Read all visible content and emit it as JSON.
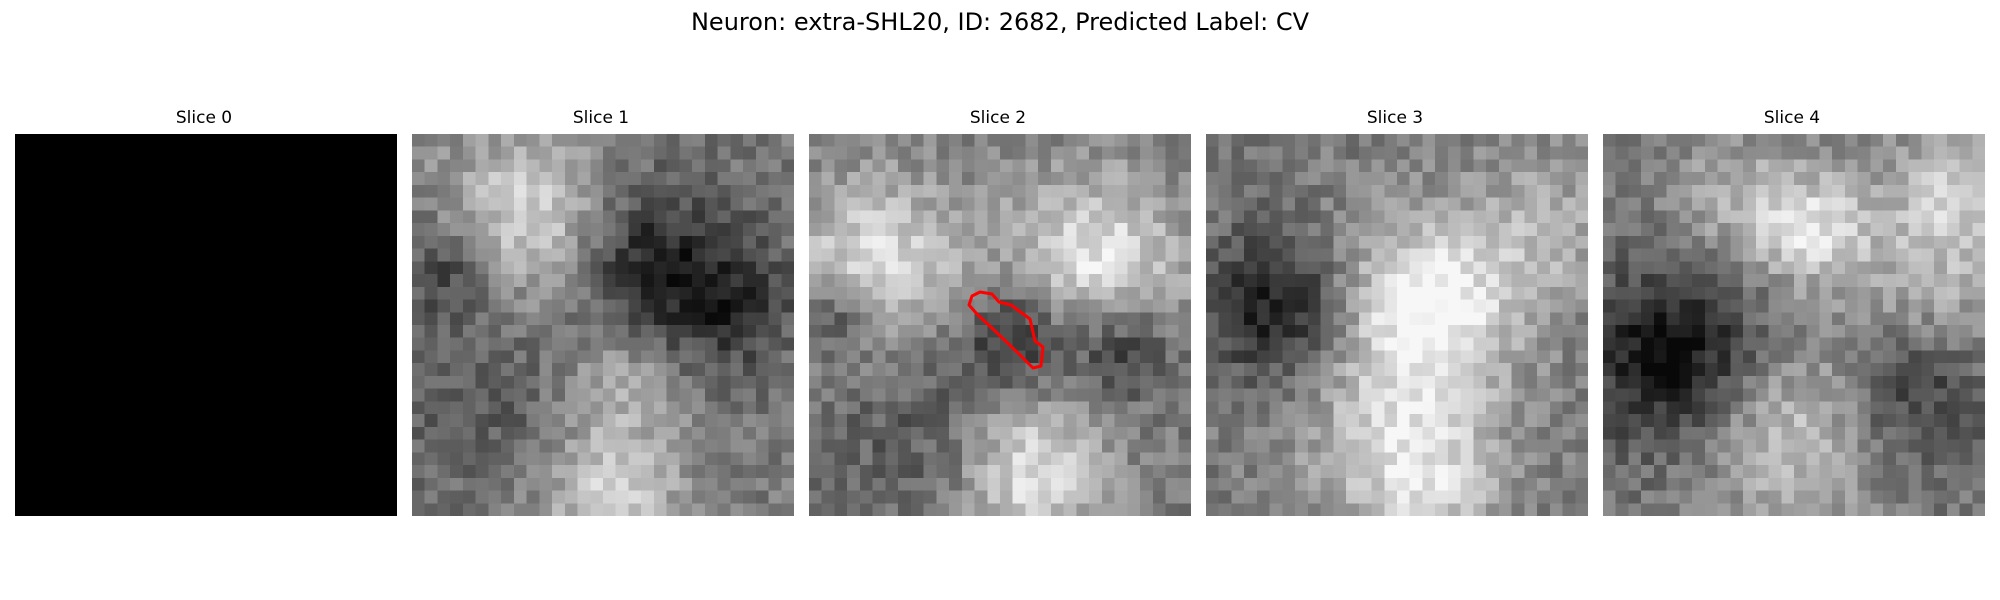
{
  "figure": {
    "title": "Neuron: extra-SHL20, ID: 2682, Predicted Label: CV"
  },
  "panels": [
    {
      "title": "Slice 0",
      "content": "black",
      "seed": 1
    },
    {
      "title": "Slice 1",
      "content": "grayscale-em",
      "seed": 11
    },
    {
      "title": "Slice 2",
      "content": "grayscale-em",
      "seed": 23,
      "has_contour": true,
      "contour_color": "#ff0000"
    },
    {
      "title": "Slice 3",
      "content": "grayscale-em",
      "seed": 37
    },
    {
      "title": "Slice 4",
      "content": "grayscale-em",
      "seed": 53
    }
  ]
}
